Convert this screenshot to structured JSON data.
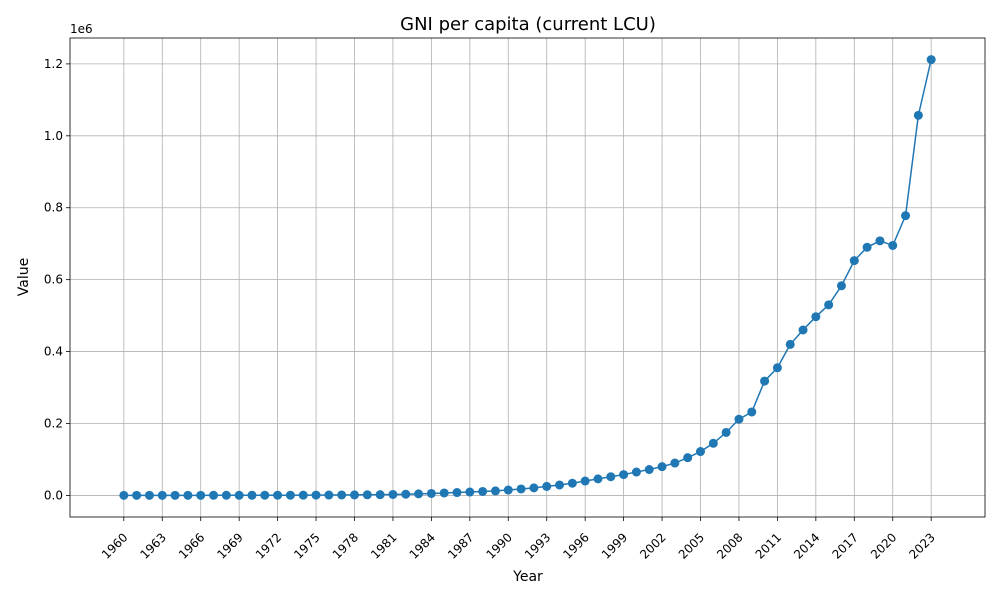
{
  "chart_data": {
    "type": "line",
    "title": "GNI per capita (current LCU)",
    "xlabel": "Year",
    "ylabel": "Value",
    "y_offset_label": "1e6",
    "xlim": [
      1955.8,
      2027.2
    ],
    "ylim": [
      -60000,
      1272000
    ],
    "grid": true,
    "legend": "none",
    "colors": {
      "series": "#1f77b4",
      "grid": "#b0b0b0"
    },
    "x_ticks": [
      "1960",
      "1963",
      "1966",
      "1969",
      "1972",
      "1975",
      "1978",
      "1981",
      "1984",
      "1987",
      "1990",
      "1993",
      "1996",
      "1999",
      "2002",
      "2005",
      "2008",
      "2011",
      "2014",
      "2017",
      "2020",
      "2023"
    ],
    "y_ticks": [
      "0.0",
      "0.2",
      "0.4",
      "0.6",
      "0.8",
      "1.0",
      "1.2"
    ],
    "x": [
      1960,
      1961,
      1962,
      1963,
      1964,
      1965,
      1966,
      1967,
      1968,
      1969,
      1970,
      1971,
      1972,
      1973,
      1974,
      1975,
      1976,
      1977,
      1978,
      1979,
      1980,
      1981,
      1982,
      1983,
      1984,
      1985,
      1986,
      1987,
      1988,
      1989,
      1990,
      1991,
      1992,
      1993,
      1994,
      1995,
      1996,
      1997,
      1998,
      1999,
      2000,
      2001,
      2002,
      2003,
      2004,
      2005,
      2006,
      2007,
      2008,
      2009,
      2010,
      2011,
      2012,
      2013,
      2014,
      2015,
      2016,
      2017,
      2018,
      2019,
      2020,
      2021,
      2022,
      2023
    ],
    "values": [
      150,
      170,
      190,
      210,
      230,
      260,
      290,
      320,
      350,
      400,
      450,
      500,
      560,
      640,
      750,
      880,
      1020,
      1200,
      1450,
      1750,
      2150,
      2700,
      3400,
      4300,
      5400,
      6800,
      8000,
      9500,
      11000,
      12500,
      15000,
      18000,
      21000,
      25000,
      29000,
      34000,
      40000,
      46000,
      52000,
      58000,
      65000,
      72000,
      80000,
      90000,
      105000,
      122000,
      145000,
      175000,
      212000,
      232000,
      318000,
      355000,
      420000,
      460000,
      497000,
      530000,
      583000,
      653000,
      690000,
      708000,
      695000,
      778000,
      1057000,
      1212000
    ]
  }
}
